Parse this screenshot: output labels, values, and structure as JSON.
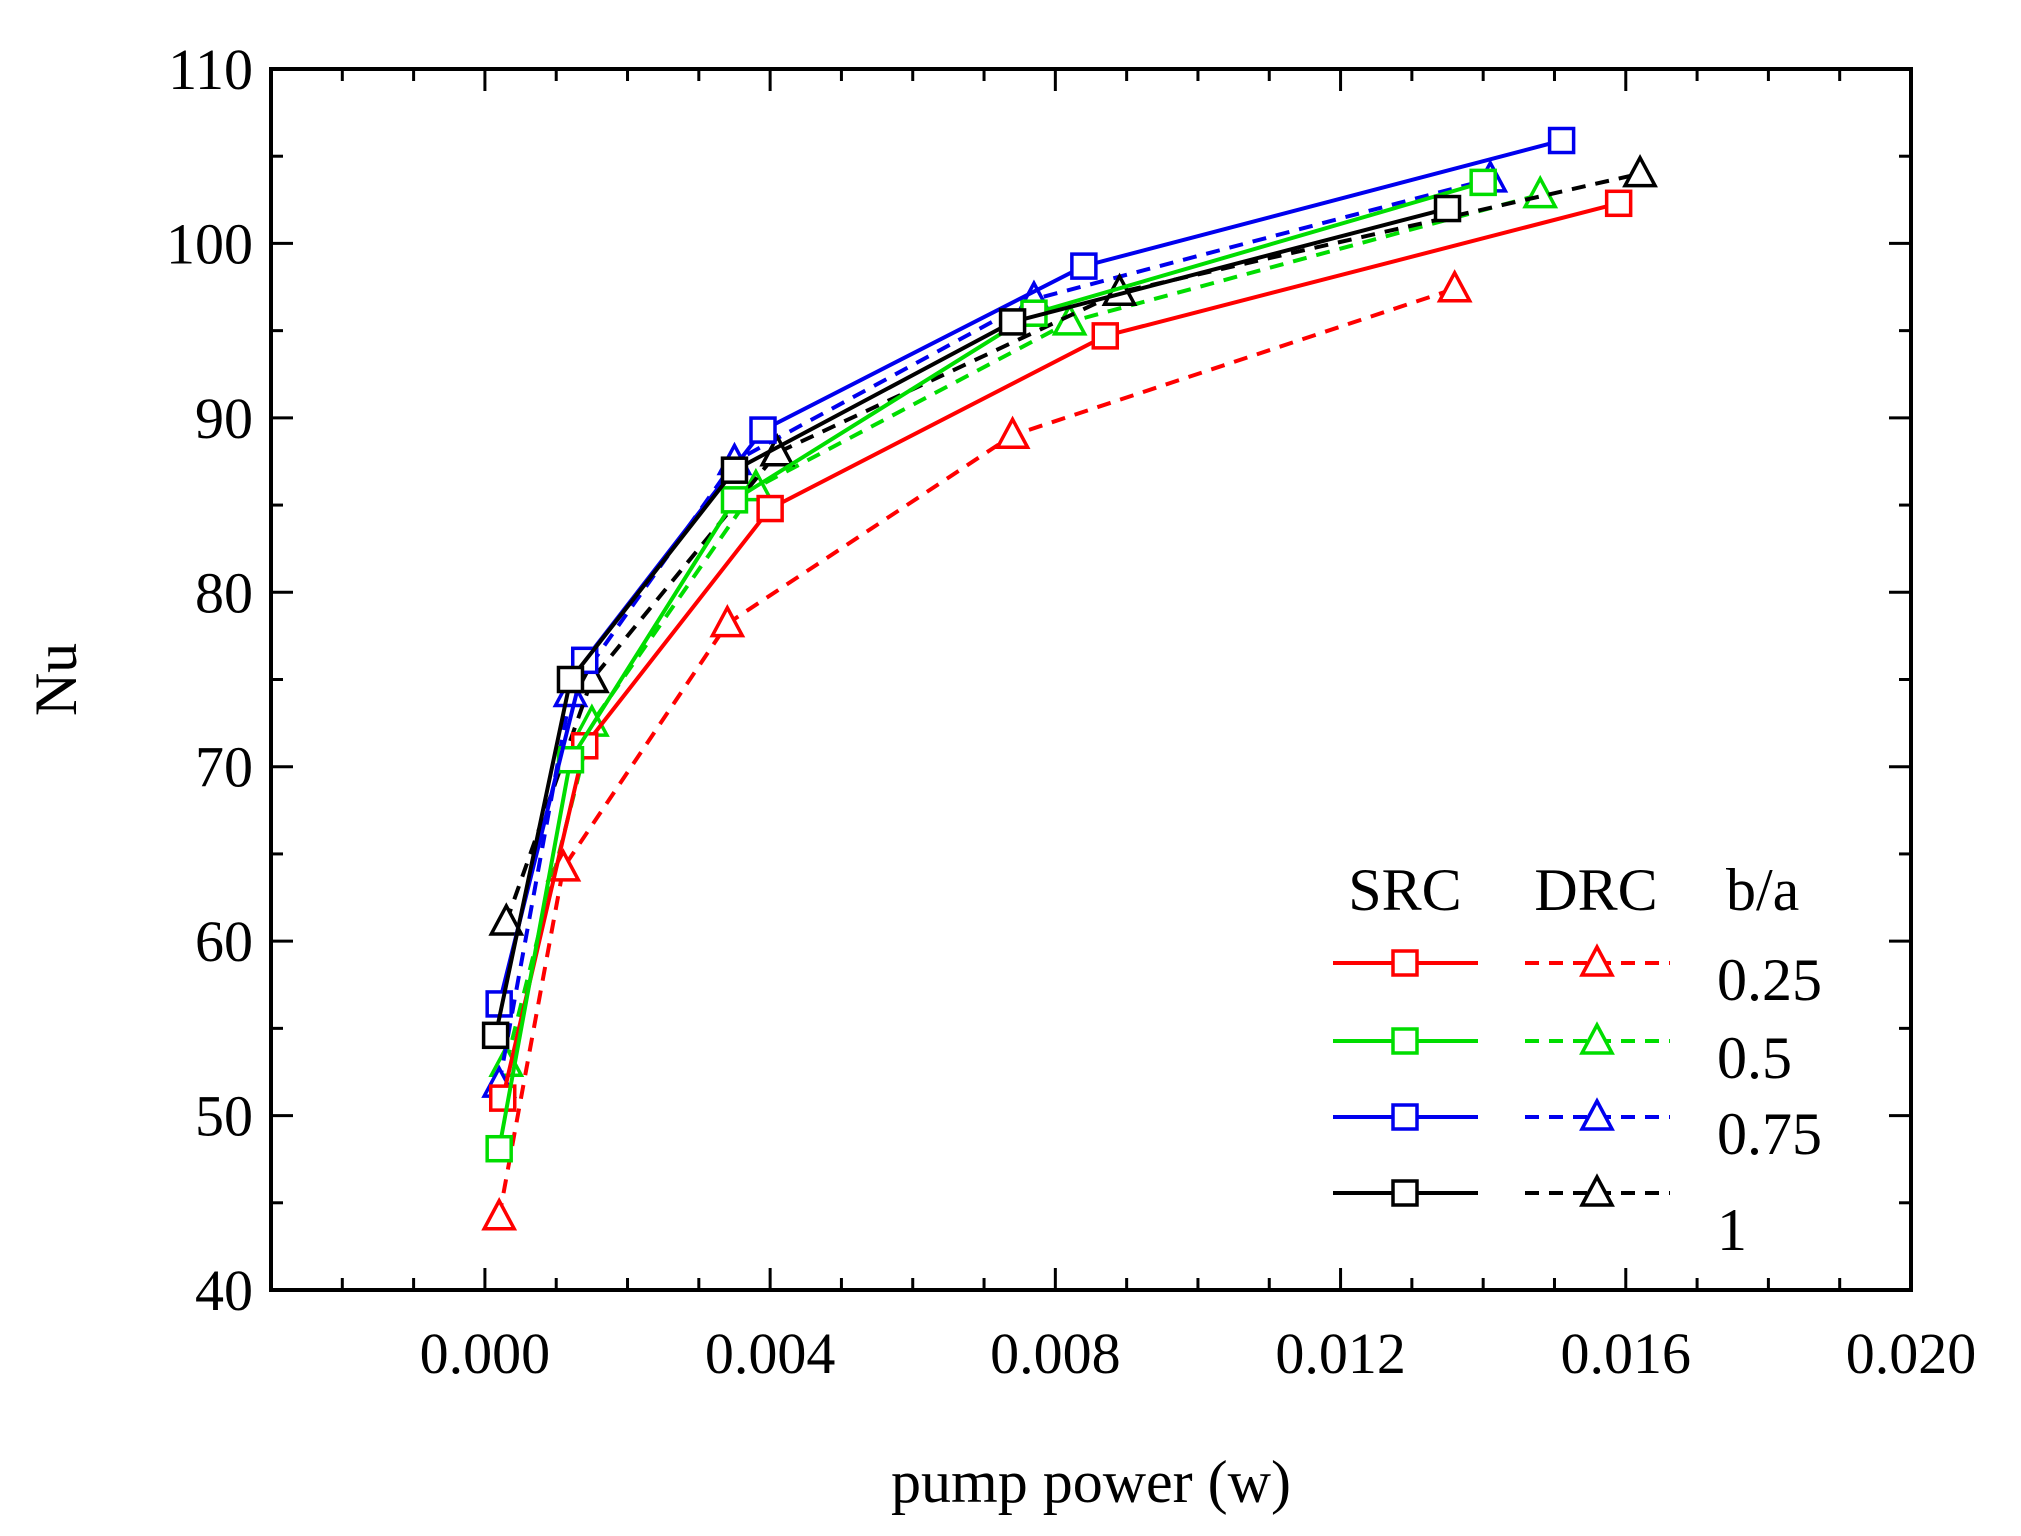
{
  "chart_data": {
    "type": "line",
    "title": "",
    "xlabel": "pump power (w)",
    "ylabel": "Nu",
    "xlim": [
      -0.003,
      0.02
    ],
    "ylim": [
      40,
      110
    ],
    "xticks": [
      "0.000",
      "0.004",
      "0.008",
      "0.012",
      "0.016",
      "0.020"
    ],
    "yticks": [
      "40",
      "50",
      "60",
      "70",
      "80",
      "90",
      "100",
      "110"
    ],
    "grid": false,
    "legend": {
      "placement": "bottom-right",
      "headers": {
        "src": "SRC",
        "drc": "DRC",
        "ratio": "b/a"
      },
      "ratios": [
        "0.25",
        "0.5",
        "0.75",
        "1"
      ]
    },
    "colors": {
      "0.25": "#ff0000",
      "0.5": "#00dd00",
      "0.75": "#0000ee",
      "1": "#000000"
    },
    "series": [
      {
        "name": "SRC b/a=0.25",
        "group": "SRC",
        "ratio": "0.25",
        "color": "#ff0000",
        "dash": false,
        "marker": "square",
        "x": [
          0.00025,
          0.0014,
          0.004,
          0.0087,
          0.0159
        ],
        "y": [
          51.0,
          71.2,
          84.8,
          94.7,
          102.3
        ]
      },
      {
        "name": "SRC b/a=0.5",
        "group": "SRC",
        "ratio": "0.5",
        "color": "#00dd00",
        "dash": false,
        "marker": "square",
        "x": [
          0.0002,
          0.0012,
          0.0035,
          0.0077,
          0.014
        ],
        "y": [
          48.1,
          70.4,
          85.3,
          96.0,
          103.5
        ]
      },
      {
        "name": "SRC b/a=0.75",
        "group": "SRC",
        "ratio": "0.75",
        "color": "#0000ee",
        "dash": false,
        "marker": "square",
        "x": [
          0.0002,
          0.0014,
          0.0039,
          0.0084,
          0.0151
        ],
        "y": [
          56.4,
          76.1,
          89.3,
          98.7,
          105.9
        ]
      },
      {
        "name": "SRC b/a=1",
        "group": "SRC",
        "ratio": "1",
        "color": "#000000",
        "dash": false,
        "marker": "square",
        "x": [
          0.00015,
          0.0012,
          0.0035,
          0.0074,
          0.0135
        ],
        "y": [
          54.6,
          75.0,
          87.0,
          95.5,
          102.0
        ]
      },
      {
        "name": "DRC b/a=0.25",
        "group": "DRC",
        "ratio": "0.25",
        "color": "#ff0000",
        "dash": true,
        "marker": "triangle",
        "x": [
          0.0002,
          0.0011,
          0.0034,
          0.0074,
          0.0136
        ],
        "y": [
          44.2,
          64.2,
          78.2,
          89.0,
          97.4
        ]
      },
      {
        "name": "DRC b/a=0.5",
        "group": "DRC",
        "ratio": "0.5",
        "color": "#00dd00",
        "dash": true,
        "marker": "triangle",
        "x": [
          0.0003,
          0.0015,
          0.0038,
          0.0082,
          0.0148
        ],
        "y": [
          53.0,
          72.5,
          86.0,
          95.5,
          102.8
        ]
      },
      {
        "name": "DRC b/a=0.75",
        "group": "DRC",
        "ratio": "0.75",
        "color": "#0000ee",
        "dash": true,
        "marker": "triangle",
        "x": [
          0.0002,
          0.0012,
          0.0035,
          0.0077,
          0.0141
        ],
        "y": [
          51.8,
          74.2,
          87.5,
          96.8,
          103.7
        ]
      },
      {
        "name": "DRC b/a=1",
        "group": "DRC",
        "ratio": "1",
        "color": "#000000",
        "dash": true,
        "marker": "triangle",
        "x": [
          0.0003,
          0.0015,
          0.0041,
          0.0089,
          0.0162
        ],
        "y": [
          61.1,
          75.0,
          88.0,
          97.2,
          104.0
        ]
      }
    ]
  }
}
